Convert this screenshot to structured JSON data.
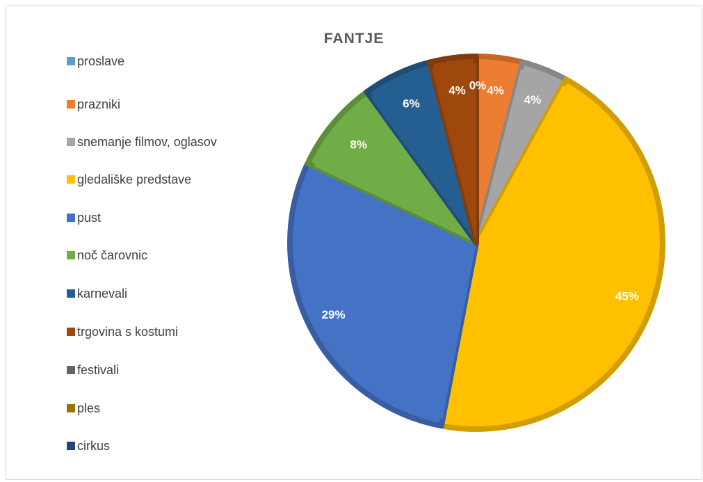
{
  "chart_data": {
    "type": "pie",
    "title": "FANTJE",
    "legend_position": "left",
    "slices": [
      {
        "label": "proslave",
        "value": 0,
        "display": "0%",
        "color": "#5b9bd5"
      },
      {
        "label": "prazniki",
        "value": 4,
        "display": "4%",
        "color": "#ed7d31"
      },
      {
        "label": "snemanje filmov, oglasov",
        "value": 4,
        "display": "4%",
        "color": "#a5a5a5"
      },
      {
        "label": "gledališke predstave",
        "value": 45,
        "display": "45%",
        "color": "#ffc000"
      },
      {
        "label": "pust",
        "value": 29,
        "display": "29%",
        "color": "#4472c4"
      },
      {
        "label": "noč čarovnic",
        "value": 8,
        "display": "8%",
        "color": "#70ad47"
      },
      {
        "label": "karnevali",
        "value": 6,
        "display": "6%",
        "color": "#255e91"
      },
      {
        "label": "trgovina s kostumi",
        "value": 4,
        "display": "4%",
        "color": "#9e480e"
      },
      {
        "label": "festivali",
        "value": 0,
        "display": "",
        "color": "#636363"
      },
      {
        "label": "ples",
        "value": 0,
        "display": "",
        "color": "#997300"
      },
      {
        "label": "cirkus",
        "value": 0,
        "display": "",
        "color": "#264478"
      }
    ]
  }
}
